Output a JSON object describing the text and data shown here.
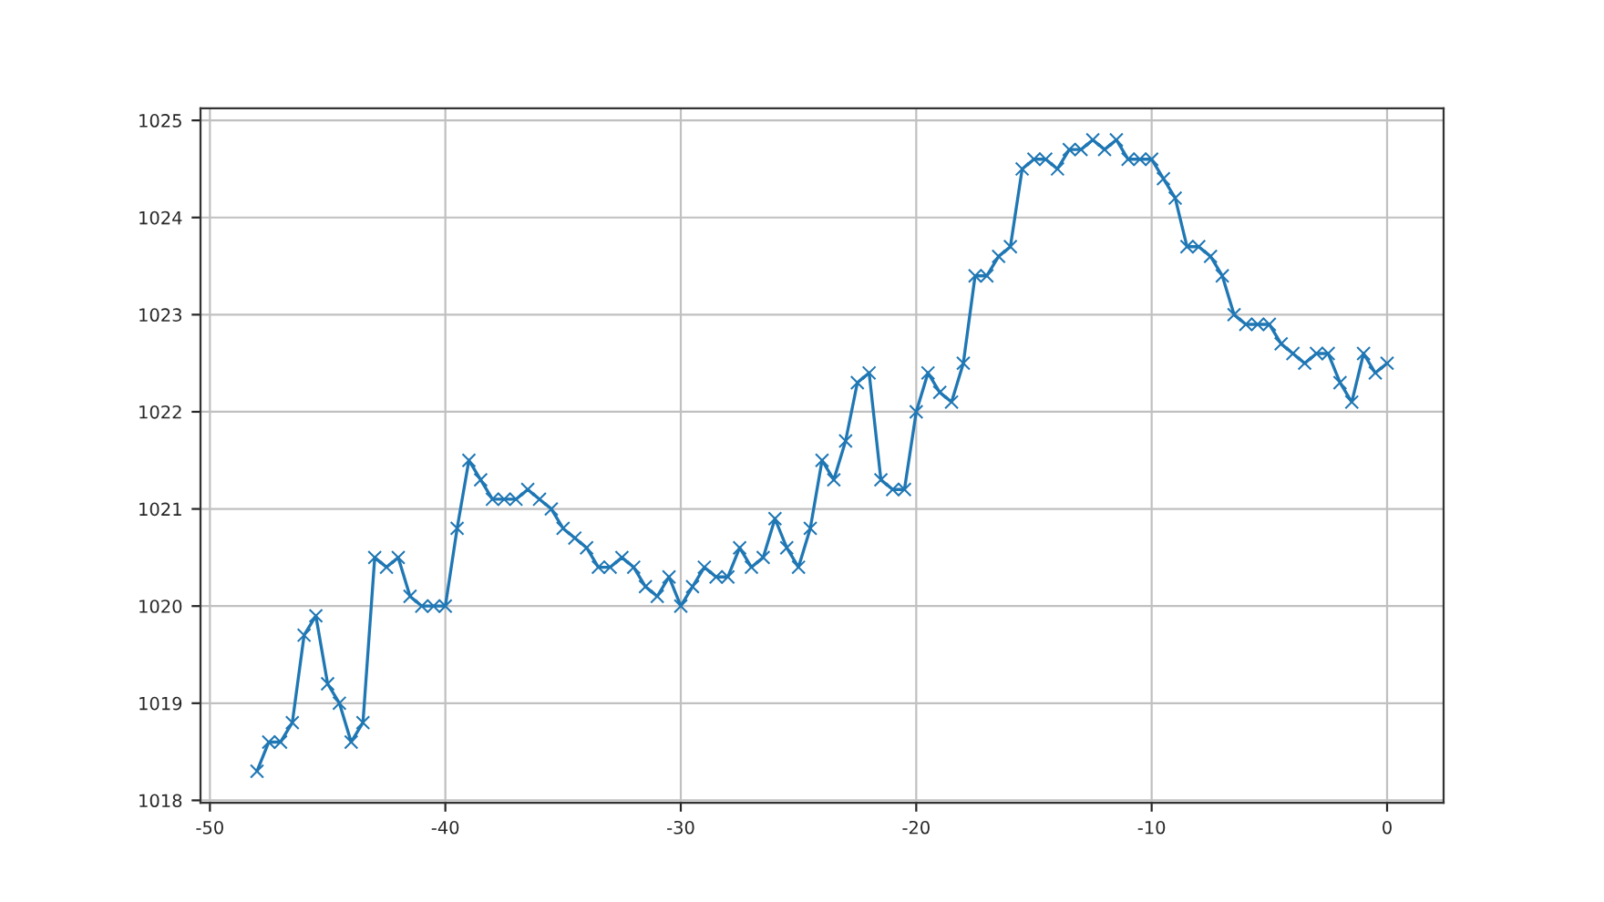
{
  "chart_data": {
    "type": "line",
    "marker": "cross",
    "grid": true,
    "x": [
      -48,
      -47.5,
      -47,
      -46.5,
      -46,
      -45.5,
      -45,
      -44.5,
      -44,
      -43.5,
      -43,
      -42.5,
      -42,
      -41.5,
      -41,
      -40.5,
      -40,
      -39.5,
      -39,
      -38.5,
      -38,
      -37.5,
      -37,
      -36.5,
      -36,
      -35.5,
      -35,
      -34.5,
      -34,
      -33.5,
      -33,
      -32.5,
      -32,
      -31.5,
      -31,
      -30.5,
      -30,
      -29.5,
      -29,
      -28.5,
      -28,
      -27.5,
      -27,
      -26.5,
      -26,
      -25.5,
      -25,
      -24.5,
      -24,
      -23.5,
      -23,
      -22.5,
      -22,
      -21.5,
      -21,
      -20.5,
      -20,
      -19.5,
      -19,
      -18.5,
      -18,
      -17.5,
      -17,
      -16.5,
      -16,
      -15.5,
      -15,
      -14.5,
      -14,
      -13.5,
      -13,
      -12.5,
      -12,
      -11.5,
      -11,
      -10.5,
      -10,
      -9.5,
      -9,
      -8.5,
      -8,
      -7.5,
      -7,
      -6.5,
      -6,
      -5.5,
      -5,
      -4.5,
      -4,
      -3.5,
      -3,
      -2.5,
      -2,
      -1.5,
      -1,
      -0.5,
      0
    ],
    "series": [
      {
        "color": "#1f77b4",
        "values": [
          1018.3,
          1018.6,
          1018.6,
          1018.8,
          1019.7,
          1019.9,
          1019.2,
          1019.0,
          1018.6,
          1018.8,
          1020.5,
          1020.4,
          1020.5,
          1020.1,
          1020.0,
          1020.0,
          1020.0,
          1020.8,
          1021.5,
          1021.3,
          1021.1,
          1021.1,
          1021.1,
          1021.2,
          1021.1,
          1021.0,
          1020.8,
          1020.7,
          1020.6,
          1020.4,
          1020.4,
          1020.5,
          1020.4,
          1020.2,
          1020.1,
          1020.3,
          1020.0,
          1020.2,
          1020.4,
          1020.3,
          1020.3,
          1020.6,
          1020.4,
          1020.5,
          1020.9,
          1020.6,
          1020.4,
          1020.8,
          1021.5,
          1021.3,
          1021.7,
          1022.3,
          1022.4,
          1021.3,
          1021.2,
          1021.2,
          1022.0,
          1022.4,
          1022.2,
          1022.1,
          1022.5,
          1023.4,
          1023.4,
          1023.6,
          1023.7,
          1024.5,
          1024.6,
          1024.6,
          1024.5,
          1024.7,
          1024.7,
          1024.8,
          1024.7,
          1024.8,
          1024.6,
          1024.6,
          1024.6,
          1024.4,
          1024.2,
          1023.7,
          1023.7,
          1023.6,
          1023.4,
          1023.0,
          1022.9,
          1022.9,
          1022.9,
          1022.7,
          1022.6,
          1022.5,
          1022.6,
          1022.6,
          1022.3,
          1022.1,
          1022.6,
          1022.4,
          1022.5
        ]
      }
    ],
    "xlim": [
      -50.4,
      2.4
    ],
    "xticks": [
      -50,
      -40,
      -30,
      -20,
      -10,
      0
    ],
    "ylim": [
      1017.975,
      1025.125
    ],
    "yticks": [
      1018,
      1019,
      1020,
      1021,
      1022,
      1023,
      1024,
      1025
    ]
  }
}
